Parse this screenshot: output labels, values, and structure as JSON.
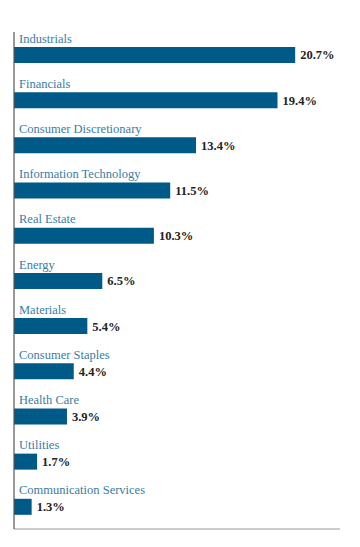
{
  "chart_data": {
    "type": "bar",
    "orientation": "horizontal",
    "categories": [
      "Industrials",
      "Financials",
      "Consumer Discretionary",
      "Information Technology",
      "Real Estate",
      "Energy",
      "Materials",
      "Consumer Staples",
      "Health Care",
      "Utilities",
      "Communication Services"
    ],
    "values": [
      20.7,
      19.4,
      13.4,
      11.5,
      10.3,
      6.5,
      5.4,
      4.4,
      3.9,
      1.7,
      1.3
    ],
    "value_labels": [
      "20.7%",
      "19.4%",
      "13.4%",
      "11.5%",
      "10.3%",
      "6.5%",
      "5.4%",
      "4.4%",
      "3.9%",
      "1.7%",
      "1.3%"
    ],
    "color": "#005a87",
    "xlim": [
      0,
      24
    ],
    "data_labels": true,
    "tick_labels": "y",
    "grid": false
  }
}
